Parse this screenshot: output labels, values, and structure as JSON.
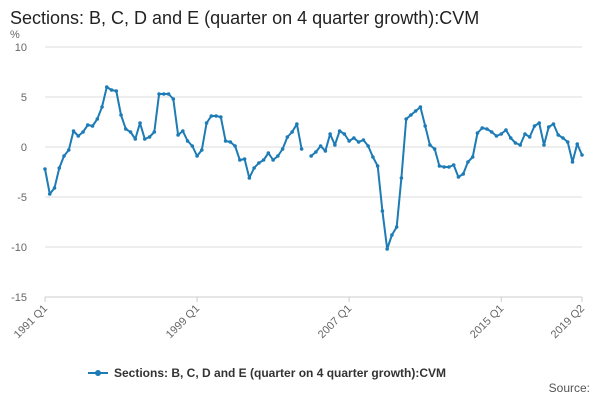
{
  "colors": {
    "series": "#1d7bb5",
    "grid": "#dddddd",
    "axis": "#cccccc",
    "text": "#666666"
  },
  "credit": "Source:",
  "chart_data": {
    "type": "line",
    "title": "Sections: B, C, D and E (quarter on 4 quarter growth):CVM",
    "ylabel": "%",
    "xlabel": "",
    "ylim": [
      -15,
      10
    ],
    "yticks": [
      -15,
      -10,
      -5,
      0,
      5,
      10
    ],
    "grid": "horizontal",
    "legend_position": "bottom",
    "x_tick_labels": [
      "1991 Q1",
      "1999 Q1",
      "2007 Q1",
      "2015 Q1",
      "2019 Q2"
    ],
    "x": [
      "1991 Q1",
      "1991 Q2",
      "1991 Q3",
      "1991 Q4",
      "1992 Q1",
      "1992 Q2",
      "1992 Q3",
      "1992 Q4",
      "1993 Q1",
      "1993 Q2",
      "1993 Q3",
      "1993 Q4",
      "1994 Q1",
      "1994 Q2",
      "1994 Q3",
      "1994 Q4",
      "1995 Q1",
      "1995 Q2",
      "1995 Q3",
      "1995 Q4",
      "1996 Q1",
      "1996 Q2",
      "1996 Q3",
      "1996 Q4",
      "1997 Q1",
      "1997 Q2",
      "1997 Q3",
      "1997 Q4",
      "1998 Q1",
      "1998 Q2",
      "1998 Q3",
      "1998 Q4",
      "1999 Q1",
      "1999 Q2",
      "1999 Q3",
      "1999 Q4",
      "2000 Q1",
      "2000 Q2",
      "2000 Q3",
      "2000 Q4",
      "2001 Q1",
      "2001 Q2",
      "2001 Q3",
      "2001 Q4",
      "2002 Q1",
      "2002 Q2",
      "2002 Q3",
      "2002 Q4",
      "2003 Q1",
      "2003 Q2",
      "2003 Q3",
      "2003 Q4",
      "2004 Q1",
      "2004 Q2",
      "2004 Q3",
      "2004 Q4",
      "2005 Q1",
      "2005 Q2",
      "2005 Q3",
      "2005 Q4",
      "2006 Q1",
      "2006 Q2",
      "2006 Q3",
      "2006 Q4",
      "2007 Q1",
      "2007 Q2",
      "2007 Q3",
      "2007 Q4",
      "2008 Q1",
      "2008 Q2",
      "2008 Q3",
      "2008 Q4",
      "2009 Q1",
      "2009 Q2",
      "2009 Q3",
      "2009 Q4",
      "2010 Q1",
      "2010 Q2",
      "2010 Q3",
      "2010 Q4",
      "2011 Q1",
      "2011 Q2",
      "2011 Q3",
      "2011 Q4",
      "2012 Q1",
      "2012 Q2",
      "2012 Q3",
      "2012 Q4",
      "2013 Q1",
      "2013 Q2",
      "2013 Q3",
      "2013 Q4",
      "2014 Q1",
      "2014 Q2",
      "2014 Q3",
      "2014 Q4",
      "2015 Q1",
      "2015 Q2",
      "2015 Q3",
      "2015 Q4",
      "2016 Q1",
      "2016 Q2",
      "2016 Q3",
      "2016 Q4",
      "2017 Q1",
      "2017 Q2",
      "2017 Q3",
      "2017 Q4",
      "2018 Q1",
      "2018 Q2",
      "2018 Q3",
      "2018 Q4",
      "2019 Q1",
      "2019 Q2"
    ],
    "series": [
      {
        "name": "Sections: B, C, D and E (quarter on 4 quarter growth):CVM",
        "values": [
          -2.2,
          -4.7,
          -4.1,
          -2.1,
          -0.9,
          -0.3,
          1.6,
          1.1,
          1.5,
          2.2,
          2.1,
          2.8,
          4.0,
          6.0,
          5.7,
          5.6,
          3.2,
          1.8,
          1.5,
          0.8,
          2.4,
          0.8,
          1.0,
          1.5,
          5.3,
          5.3,
          5.3,
          4.8,
          1.2,
          1.6,
          0.6,
          0.1,
          -0.9,
          -0.3,
          2.4,
          3.1,
          3.1,
          3.0,
          0.6,
          0.5,
          0.1,
          -1.3,
          -1.2,
          -3.1,
          -2.1,
          -1.6,
          -1.3,
          -0.6,
          -1.3,
          -0.9,
          -0.2,
          1.0,
          1.5,
          2.3,
          -0.2,
          null,
          -0.9,
          -0.5,
          0.1,
          -0.4,
          1.3,
          0.2,
          1.6,
          1.3,
          0.6,
          0.9,
          0.5,
          0.7,
          0.1,
          -1.0,
          -1.9,
          -6.4,
          -10.2,
          -8.8,
          -8.0,
          -3.1,
          2.8,
          3.2,
          3.6,
          4.0,
          2.1,
          0.2,
          -0.2,
          -1.9,
          -2.0,
          -2.0,
          -1.8,
          -3.0,
          -2.7,
          -1.5,
          -1.0,
          1.4,
          1.9,
          1.8,
          1.5,
          1.1,
          1.3,
          1.7,
          0.9,
          0.4,
          0.2,
          1.3,
          1.0,
          2.1,
          2.4,
          0.2,
          2.0,
          2.3,
          1.2,
          0.9,
          0.5,
          -1.5,
          0.3,
          -0.8
        ]
      }
    ]
  }
}
